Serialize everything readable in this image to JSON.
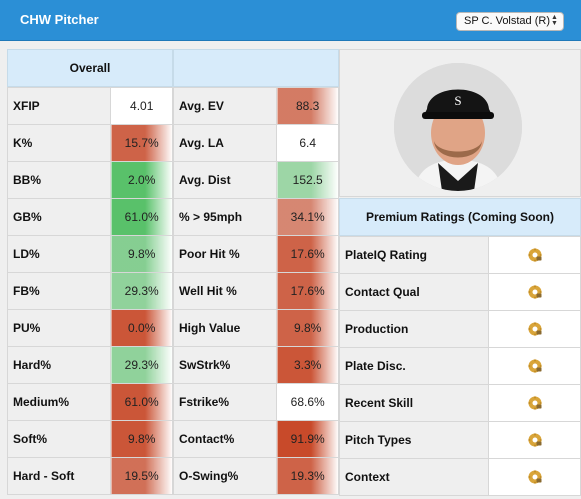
{
  "header": {
    "title": "CHW Pitcher",
    "player_select": "SP C. Volstad (R)"
  },
  "colors": {
    "header": "#2b8fd6",
    "red": "#c84a2a",
    "green": "#59c16a",
    "subheader": "#d7ebfa"
  },
  "overall": {
    "label": "Overall",
    "rows": [
      {
        "label": "XFIP",
        "value": "4.01",
        "tone": "none",
        "level": 0
      },
      {
        "label": "K%",
        "value": "15.7%",
        "tone": "red",
        "level": 0.8
      },
      {
        "label": "BB%",
        "value": "2.0%",
        "tone": "green",
        "level": 1.0
      },
      {
        "label": "GB%",
        "value": "61.0%",
        "tone": "green",
        "level": 1.0
      },
      {
        "label": "LD%",
        "value": "9.8%",
        "tone": "green",
        "level": 0.6
      },
      {
        "label": "FB%",
        "value": "29.3%",
        "tone": "green",
        "level": 0.5
      },
      {
        "label": "PU%",
        "value": "0.0%",
        "tone": "red",
        "level": 0.9
      },
      {
        "label": "Hard%",
        "value": "29.3%",
        "tone": "green",
        "level": 0.5
      },
      {
        "label": "Medium%",
        "value": "61.0%",
        "tone": "red",
        "level": 0.9
      },
      {
        "label": "Soft%",
        "value": "9.8%",
        "tone": "red",
        "level": 0.9
      },
      {
        "label": "Hard - Soft",
        "value": "19.5%",
        "tone": "red",
        "level": 0.7
      }
    ]
  },
  "contact": {
    "rows": [
      {
        "label": "Avg. EV",
        "value": "88.3",
        "tone": "red",
        "level": 0.6
      },
      {
        "label": "Avg. LA",
        "value": "6.4",
        "tone": "none",
        "level": 0
      },
      {
        "label": "Avg. Dist",
        "value": "152.5",
        "tone": "green",
        "level": 0.4
      },
      {
        "label": "% > 95mph",
        "value": "34.1%",
        "tone": "red",
        "level": 0.5
      },
      {
        "label": "Poor Hit %",
        "value": "17.6%",
        "tone": "red",
        "level": 0.8
      },
      {
        "label": "Well Hit %",
        "value": "17.6%",
        "tone": "red",
        "level": 0.8
      },
      {
        "label": "High Value",
        "value": "9.8%",
        "tone": "red",
        "level": 0.8
      },
      {
        "label": "SwStrk%",
        "value": "3.3%",
        "tone": "red",
        "level": 0.9
      },
      {
        "label": "Fstrike%",
        "value": "68.6%",
        "tone": "none",
        "level": 0
      },
      {
        "label": "Contact%",
        "value": "91.9%",
        "tone": "red",
        "level": 1.0
      },
      {
        "label": "O-Swing%",
        "value": "19.3%",
        "tone": "red",
        "level": 0.8
      }
    ]
  },
  "premium": {
    "label": "Premium Ratings (Coming Soon)",
    "rows": [
      {
        "label": "PlateIQ Rating",
        "icon": "lock-icon"
      },
      {
        "label": "Contact Qual",
        "icon": "lock-icon"
      },
      {
        "label": "Production",
        "icon": "lock-icon"
      },
      {
        "label": "Plate Disc.",
        "icon": "lock-icon"
      },
      {
        "label": "Recent Skill",
        "icon": "lock-icon"
      },
      {
        "label": "Pitch Types",
        "icon": "lock-icon"
      },
      {
        "label": "Context",
        "icon": "lock-icon"
      }
    ]
  }
}
